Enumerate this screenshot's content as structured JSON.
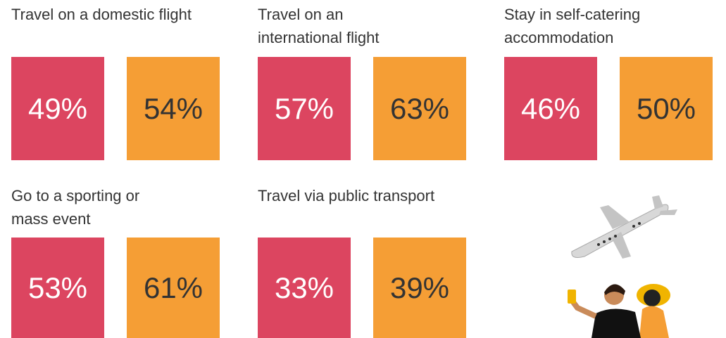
{
  "tiles": [
    {
      "label_lines": [
        "Travel on a domestic flight"
      ],
      "values": [
        "49%",
        "54%"
      ]
    },
    {
      "label_lines": [
        "Travel on an",
        "international flight"
      ],
      "values": [
        "57%",
        "63%"
      ]
    },
    {
      "label_lines": [
        "Stay in self-catering",
        "accommodation"
      ],
      "values": [
        "46%",
        "50%"
      ]
    },
    {
      "label_lines": [
        "Go to a sporting or",
        "mass event"
      ],
      "values": [
        "53%",
        "61%"
      ]
    },
    {
      "label_lines": [
        "Travel via public transport"
      ],
      "values": [
        "33%",
        "39%"
      ]
    }
  ]
}
